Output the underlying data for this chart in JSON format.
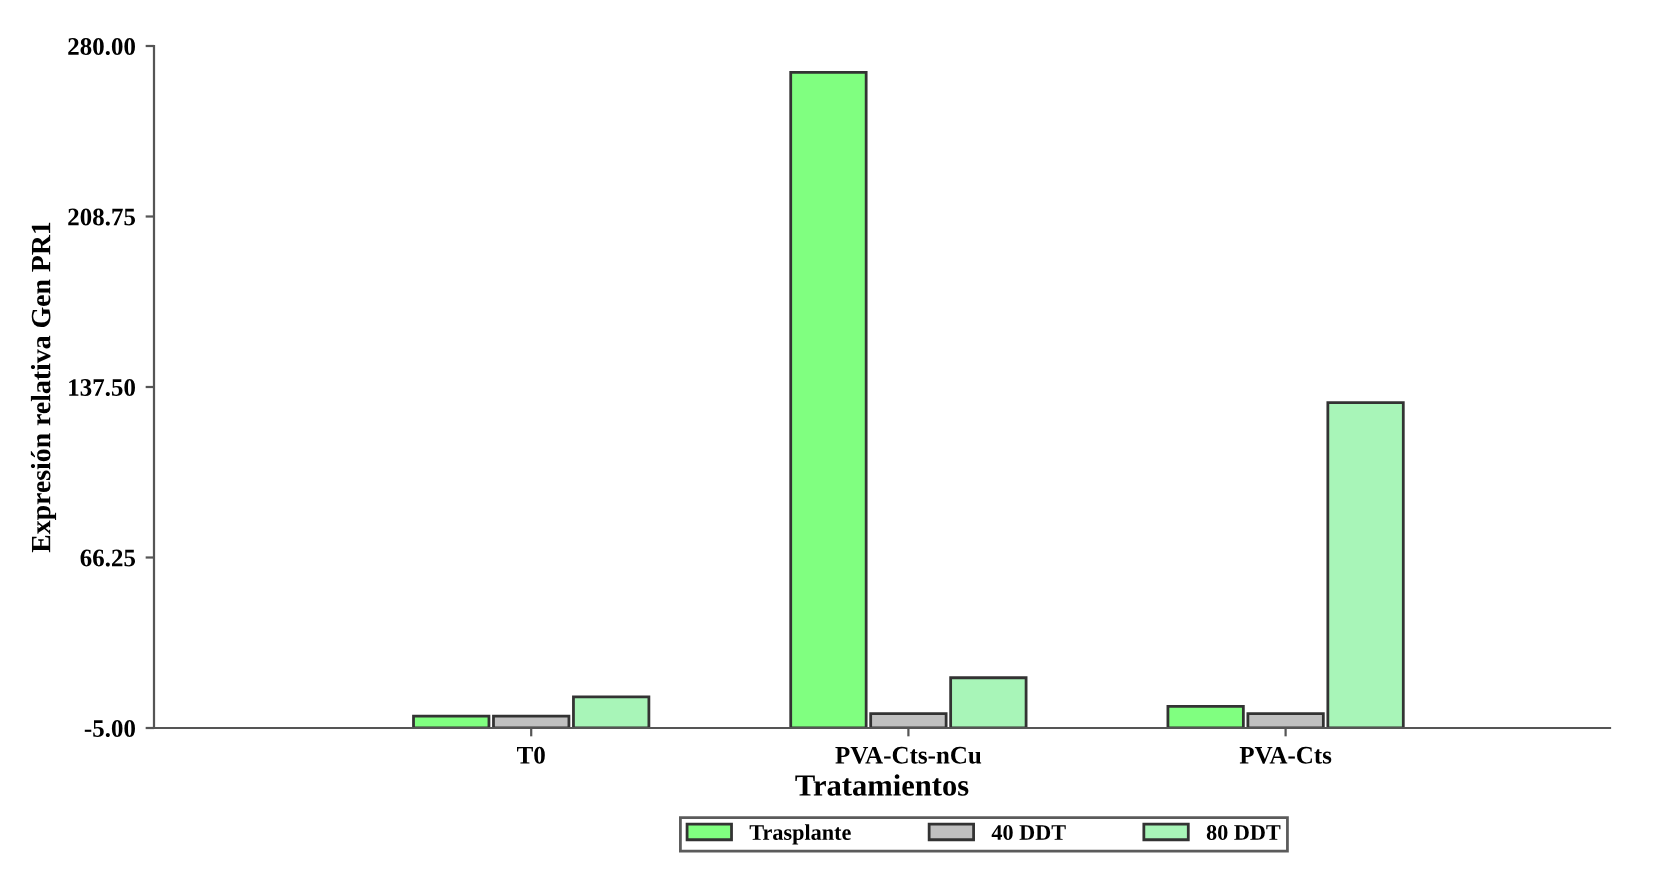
{
  "chart_data": {
    "type": "bar",
    "xlabel": "Tratamientos",
    "ylabel": "Expresión relativa Gen PR1",
    "categories": [
      "T0",
      "PVA-Cts-nCu",
      "PVA-Cts"
    ],
    "series": [
      {
        "name": "Trasplante",
        "color": "#80ff80",
        "base": [
          -5,
          -5,
          -5
        ],
        "values": [
          5,
          274,
          9
        ]
      },
      {
        "name": "40 DDT",
        "color": "#c0c0c0",
        "base": [
          -5,
          -5,
          -5
        ],
        "values": [
          5,
          6,
          6
        ]
      },
      {
        "name": "80 DDT",
        "color": "#a8f5b8",
        "base": [
          -5,
          -5,
          -5
        ],
        "values": [
          13,
          21,
          136
        ]
      }
    ],
    "ylim": [
      -5,
      280
    ],
    "yticks": [
      {
        "value": -5,
        "label": "-5.00"
      },
      {
        "value": 66.25,
        "label": "66.25"
      },
      {
        "value": 137.5,
        "label": "137.50"
      },
      {
        "value": 208.75,
        "label": "208.75"
      },
      {
        "value": 280,
        "label": "280.00"
      }
    ],
    "grid": false,
    "legend": "bottom"
  }
}
